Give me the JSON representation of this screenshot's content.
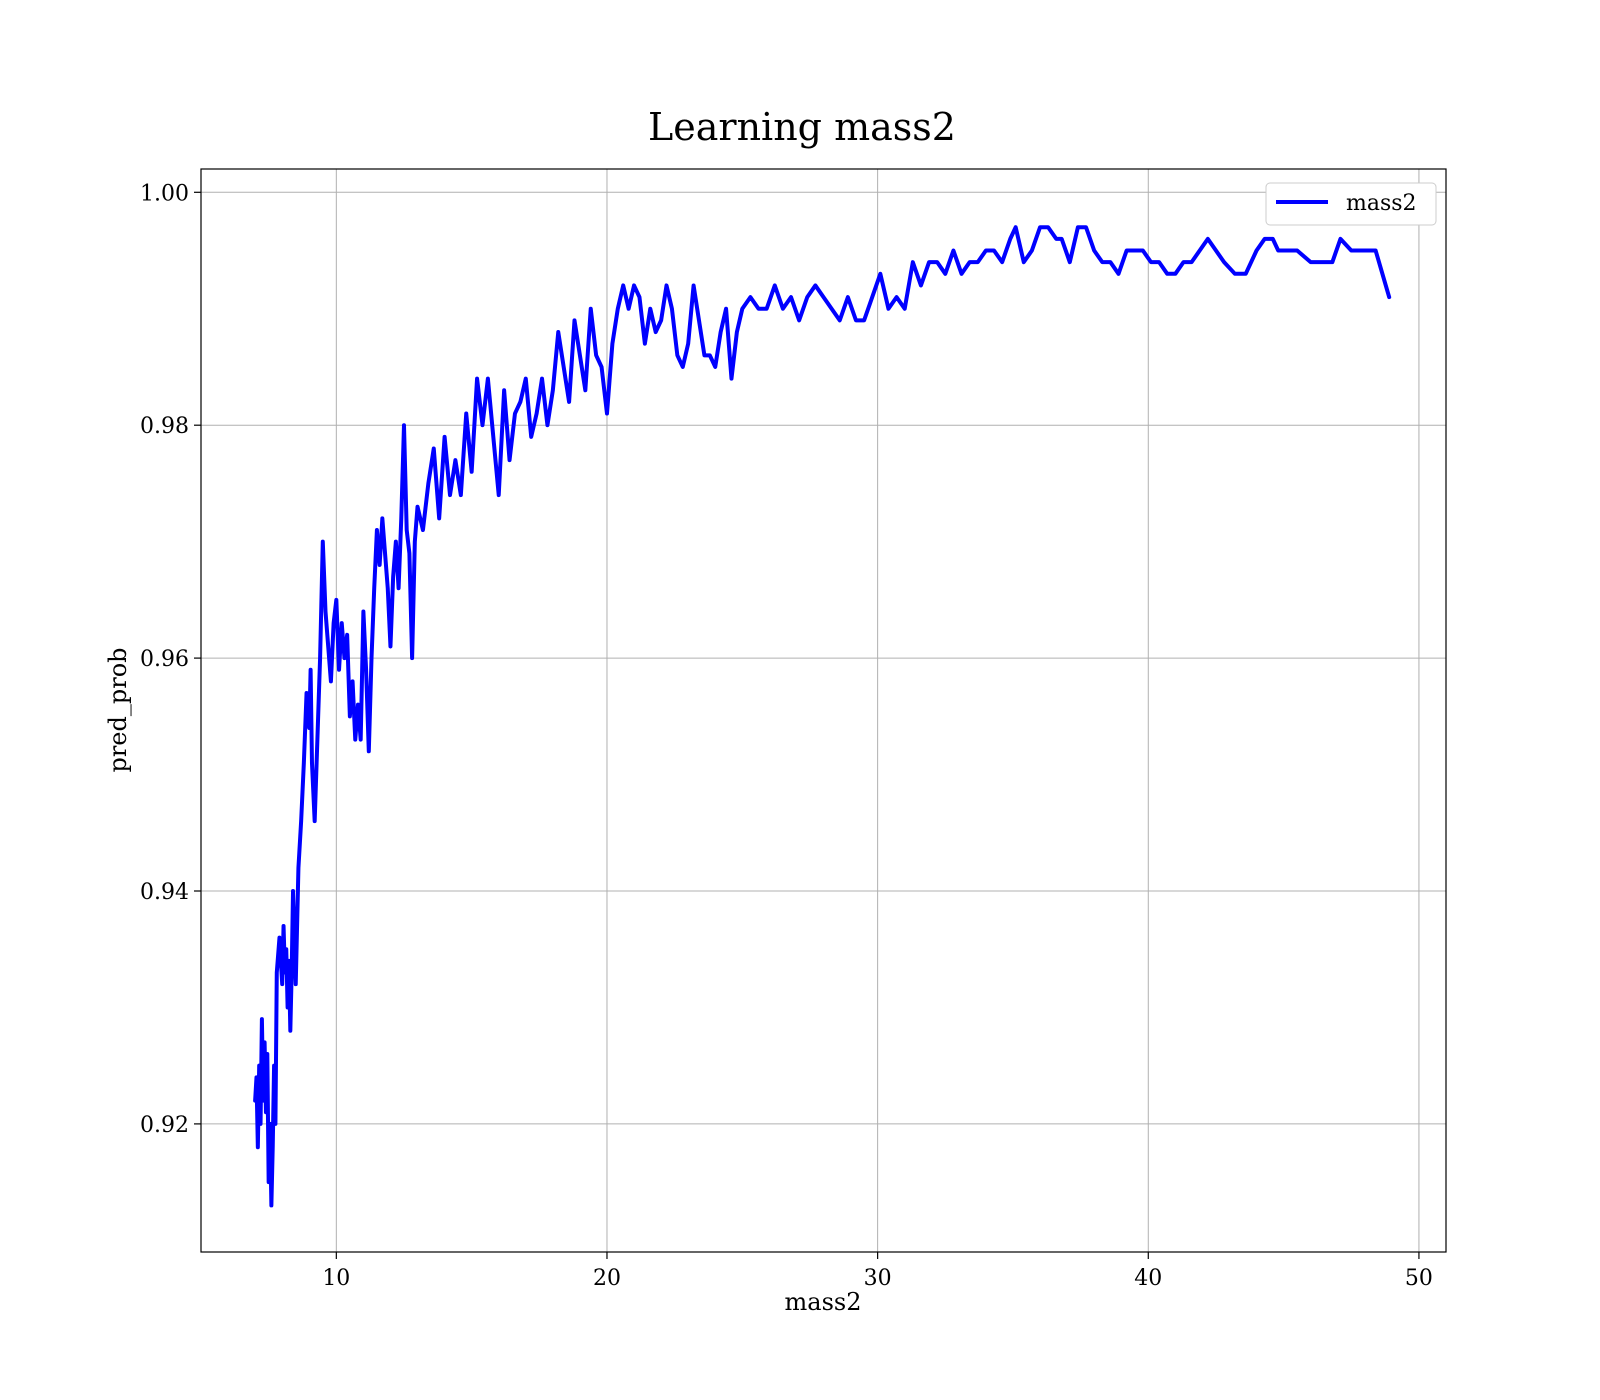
{
  "chart_data": {
    "type": "line",
    "title": "Learning mass2",
    "xlabel": "mass2",
    "ylabel": "pred_prob",
    "xlim": [
      5,
      51
    ],
    "ylim": [
      0.909,
      1.002
    ],
    "x_ticks": [
      10,
      20,
      30,
      40,
      50
    ],
    "y_ticks": [
      0.92,
      0.94,
      0.96,
      0.98,
      1.0
    ],
    "x_tick_labels": [
      "10",
      "20",
      "30",
      "40",
      "50"
    ],
    "y_tick_labels": [
      "0.92",
      "0.94",
      "0.96",
      "0.98",
      "1.00"
    ],
    "grid": true,
    "legend_position": "upper-right",
    "series": [
      {
        "name": "mass2",
        "color": "#0000ff",
        "x": [
          7.0,
          7.05,
          7.1,
          7.15,
          7.2,
          7.25,
          7.3,
          7.35,
          7.4,
          7.45,
          7.5,
          7.55,
          7.6,
          7.65,
          7.7,
          7.75,
          7.8,
          7.9,
          8.0,
          8.05,
          8.1,
          8.15,
          8.2,
          8.25,
          8.3,
          8.35,
          8.4,
          8.5,
          8.6,
          8.7,
          8.8,
          8.9,
          9.0,
          9.05,
          9.1,
          9.2,
          9.3,
          9.4,
          9.5,
          9.6,
          9.7,
          9.8,
          9.9,
          10.0,
          10.1,
          10.2,
          10.3,
          10.4,
          10.5,
          10.6,
          10.7,
          10.8,
          10.9,
          11.0,
          11.1,
          11.2,
          11.3,
          11.4,
          11.5,
          11.6,
          11.7,
          11.8,
          11.9,
          12.0,
          12.1,
          12.2,
          12.3,
          12.4,
          12.5,
          12.6,
          12.7,
          12.8,
          12.9,
          13.0,
          13.2,
          13.4,
          13.6,
          13.8,
          14.0,
          14.2,
          14.4,
          14.6,
          14.8,
          15.0,
          15.2,
          15.4,
          15.6,
          15.8,
          16.0,
          16.2,
          16.4,
          16.6,
          16.8,
          17.0,
          17.2,
          17.4,
          17.6,
          17.8,
          18.0,
          18.2,
          18.4,
          18.6,
          18.8,
          19.0,
          19.2,
          19.4,
          19.6,
          19.8,
          20.0,
          20.2,
          20.4,
          20.6,
          20.8,
          21.0,
          21.2,
          21.4,
          21.6,
          21.8,
          22.0,
          22.2,
          22.4,
          22.6,
          22.8,
          23.0,
          23.2,
          23.4,
          23.6,
          23.8,
          24.0,
          24.2,
          24.4,
          24.6,
          24.8,
          25.0,
          25.3,
          25.6,
          25.9,
          26.2,
          26.5,
          26.8,
          27.1,
          27.4,
          27.7,
          28.0,
          28.3,
          28.6,
          28.9,
          29.2,
          29.5,
          29.8,
          30.1,
          30.4,
          30.7,
          31.0,
          31.3,
          31.6,
          31.9,
          32.2,
          32.5,
          32.8,
          33.1,
          33.4,
          33.7,
          34.0,
          34.3,
          34.6,
          34.9,
          35.1,
          35.4,
          35.7,
          36.0,
          36.3,
          36.6,
          36.8,
          37.1,
          37.4,
          37.7,
          38.0,
          38.3,
          38.6,
          38.9,
          39.2,
          39.5,
          39.8,
          40.1,
          40.4,
          40.7,
          41.0,
          41.3,
          41.6,
          41.9,
          42.2,
          42.5,
          42.8,
          43.2,
          43.6,
          44.0,
          44.3,
          44.6,
          44.8,
          45.1,
          45.5,
          46.0,
          46.5,
          46.8,
          47.1,
          47.5,
          48.0,
          48.4,
          48.9
        ],
        "y": [
          0.922,
          0.924,
          0.918,
          0.925,
          0.92,
          0.929,
          0.922,
          0.927,
          0.921,
          0.926,
          0.915,
          0.92,
          0.913,
          0.918,
          0.925,
          0.92,
          0.933,
          0.936,
          0.932,
          0.937,
          0.933,
          0.935,
          0.93,
          0.934,
          0.928,
          0.933,
          0.94,
          0.932,
          0.942,
          0.946,
          0.951,
          0.957,
          0.954,
          0.959,
          0.951,
          0.946,
          0.953,
          0.96,
          0.97,
          0.964,
          0.961,
          0.958,
          0.963,
          0.965,
          0.959,
          0.963,
          0.96,
          0.962,
          0.955,
          0.958,
          0.953,
          0.956,
          0.953,
          0.964,
          0.959,
          0.952,
          0.96,
          0.966,
          0.971,
          0.968,
          0.972,
          0.969,
          0.966,
          0.961,
          0.967,
          0.97,
          0.966,
          0.972,
          0.98,
          0.971,
          0.969,
          0.96,
          0.97,
          0.973,
          0.971,
          0.975,
          0.978,
          0.972,
          0.979,
          0.974,
          0.977,
          0.974,
          0.981,
          0.976,
          0.984,
          0.98,
          0.984,
          0.979,
          0.974,
          0.983,
          0.977,
          0.981,
          0.982,
          0.984,
          0.979,
          0.981,
          0.984,
          0.98,
          0.983,
          0.988,
          0.985,
          0.982,
          0.989,
          0.986,
          0.983,
          0.99,
          0.986,
          0.985,
          0.981,
          0.987,
          0.99,
          0.992,
          0.99,
          0.992,
          0.991,
          0.987,
          0.99,
          0.988,
          0.989,
          0.992,
          0.99,
          0.986,
          0.985,
          0.987,
          0.992,
          0.989,
          0.986,
          0.986,
          0.985,
          0.988,
          0.99,
          0.984,
          0.988,
          0.99,
          0.991,
          0.99,
          0.99,
          0.992,
          0.99,
          0.991,
          0.989,
          0.991,
          0.992,
          0.991,
          0.99,
          0.989,
          0.991,
          0.989,
          0.989,
          0.991,
          0.993,
          0.99,
          0.991,
          0.99,
          0.994,
          0.992,
          0.994,
          0.994,
          0.993,
          0.995,
          0.993,
          0.994,
          0.994,
          0.995,
          0.995,
          0.994,
          0.996,
          0.997,
          0.994,
          0.995,
          0.997,
          0.997,
          0.996,
          0.996,
          0.994,
          0.997,
          0.997,
          0.995,
          0.994,
          0.994,
          0.993,
          0.995,
          0.995,
          0.995,
          0.994,
          0.994,
          0.993,
          0.993,
          0.994,
          0.994,
          0.995,
          0.996,
          0.995,
          0.994,
          0.993,
          0.993,
          0.995,
          0.996,
          0.996,
          0.995,
          0.995,
          0.995,
          0.994,
          0.994,
          0.994,
          0.996,
          0.995,
          0.995,
          0.995,
          0.991
        ]
      }
    ]
  }
}
